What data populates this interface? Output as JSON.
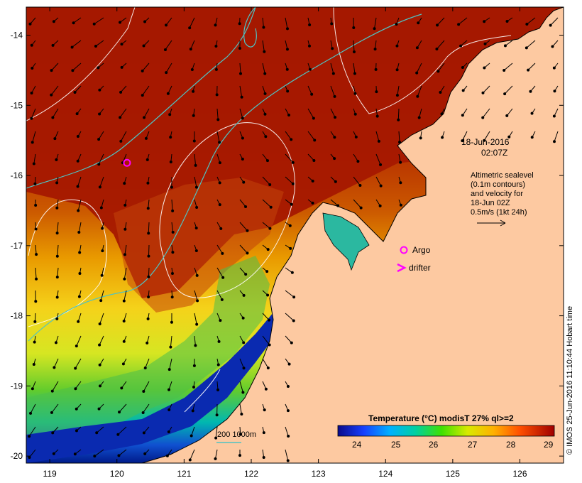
{
  "map": {
    "lat_ticks": [
      "-14",
      "-15",
      "-16",
      "-17",
      "-18",
      "-19",
      "-20"
    ],
    "lon_ticks": [
      "119",
      "120",
      "121",
      "122",
      "123",
      "124",
      "125",
      "126"
    ],
    "lat_range": [
      -20.1,
      -13.6
    ],
    "lon_range": [
      118.65,
      126.65
    ]
  },
  "annotation": {
    "date": "18-Jun-2016",
    "time": "02:07Z",
    "altimetry_lines": [
      "Altimetric sealevel",
      "(0.1m contours)",
      "and velocity for",
      "18-Jun 02Z",
      "0.5m/s (1kt 24h)"
    ]
  },
  "legend": {
    "argo_label": "Argo",
    "drifter_label": "drifter",
    "depth_label": "200  1000m"
  },
  "colorbar": {
    "title": "Temperature (°C) modisT 27% ql>=2",
    "ticks": [
      "24",
      "25",
      "26",
      "27",
      "28",
      "29"
    ],
    "range": [
      23.6,
      29.1
    ]
  },
  "argo_float": {
    "lat": -15.82,
    "lon": 120.15
  },
  "credit": "© IMOS 25-Jun-2016 11:10:44 Hobart time",
  "colors": {
    "land": "#fdc9a1",
    "ocean_warm": "#a21400",
    "argo": "#ff00ff",
    "contour_200m": "#4fc3c3",
    "sealevel_contour": "#ffffff"
  }
}
